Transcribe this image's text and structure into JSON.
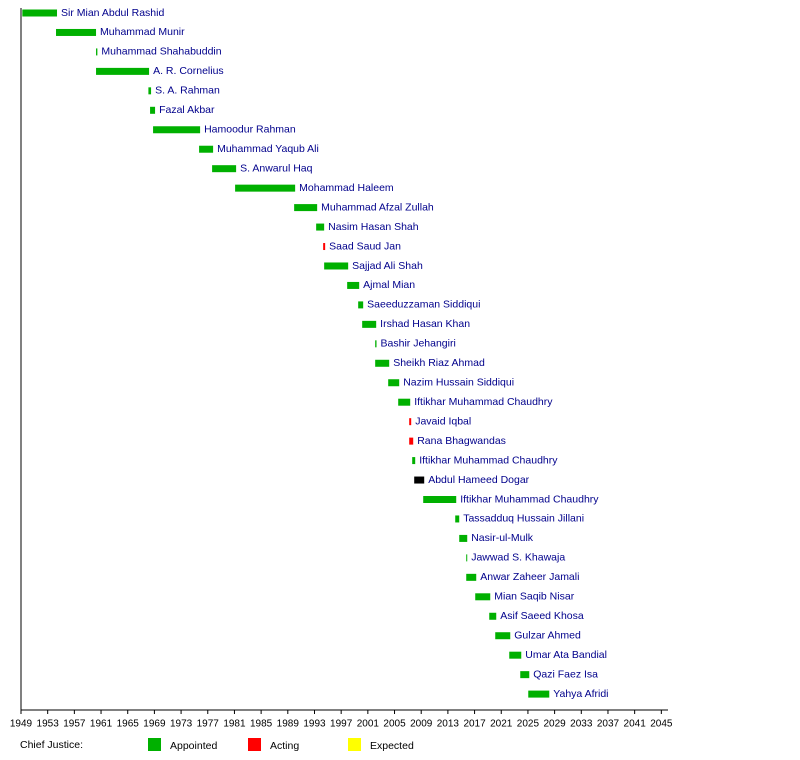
{
  "chart_data": {
    "type": "gantt",
    "xlim": [
      1949,
      2046
    ],
    "xticks": [
      1949,
      1953,
      1957,
      1961,
      1965,
      1969,
      1973,
      1977,
      1981,
      1985,
      1989,
      1993,
      1997,
      2001,
      2005,
      2009,
      2013,
      2017,
      2021,
      2025,
      2029,
      2033,
      2037,
      2041,
      2045
    ],
    "bars": [
      {
        "name": "Sir Mian Abdul Rashid",
        "start": 1949.2,
        "end": 1954.4,
        "color": "#00b000"
      },
      {
        "name": "Muhammad Munir",
        "start": 1954.25,
        "end": 1960.25,
        "color": "#00b000"
      },
      {
        "name": "Muhammad Shahabuddin",
        "start": 1960.25,
        "end": 1960.45,
        "color": "#00b000"
      },
      {
        "name": "A. R. Cornelius",
        "start": 1960.25,
        "end": 1968.2,
        "color": "#00b000"
      },
      {
        "name": "S. A. Rahman",
        "start": 1968.1,
        "end": 1968.5,
        "color": "#00b000"
      },
      {
        "name": "Fazal Akbar",
        "start": 1968.35,
        "end": 1969.1,
        "color": "#00b000"
      },
      {
        "name": "Hamoodur Rahman",
        "start": 1968.8,
        "end": 1975.85,
        "color": "#00b000"
      },
      {
        "name": "Muhammad Yaqub Ali",
        "start": 1975.7,
        "end": 1977.8,
        "color": "#00b000"
      },
      {
        "name": "S. Anwarul Haq",
        "start": 1977.65,
        "end": 1981.25,
        "color": "#00b000"
      },
      {
        "name": "Mohammad Haleem",
        "start": 1981.1,
        "end": 1990.1,
        "color": "#00b000"
      },
      {
        "name": "Muhammad Afzal Zullah",
        "start": 1989.95,
        "end": 1993.4,
        "color": "#00b000"
      },
      {
        "name": "Nasim Hasan Shah",
        "start": 1993.25,
        "end": 1994.45,
        "color": "#00b000"
      },
      {
        "name": "Saad Saud Jan",
        "start": 1994.3,
        "end": 1994.6,
        "color": "#ff0000"
      },
      {
        "name": "Sajjad Ali Shah",
        "start": 1994.45,
        "end": 1998.05,
        "color": "#00b000"
      },
      {
        "name": "Ajmal Mian",
        "start": 1997.9,
        "end": 1999.7,
        "color": "#00b000"
      },
      {
        "name": "Saeeduzzaman Siddiqui",
        "start": 1999.55,
        "end": 2000.3,
        "color": "#00b000"
      },
      {
        "name": "Irshad Hasan Khan",
        "start": 2000.15,
        "end": 2002.25,
        "color": "#00b000"
      },
      {
        "name": "Bashir Jehangiri",
        "start": 2002.1,
        "end": 2002.3,
        "color": "#00b000"
      },
      {
        "name": "Sheikh Riaz Ahmad",
        "start": 2002.1,
        "end": 2004.2,
        "color": "#00b000"
      },
      {
        "name": "Nazim Hussain Siddiqui",
        "start": 2004.05,
        "end": 2005.7,
        "color": "#00b000"
      },
      {
        "name": "Iftikhar Muhammad Chaudhry",
        "start": 2005.55,
        "end": 2007.35,
        "color": "#00b000"
      },
      {
        "name": "Javaid Iqbal",
        "start": 2007.2,
        "end": 2007.5,
        "color": "#ff0000"
      },
      {
        "name": "Rana Bhagwandas",
        "start": 2007.2,
        "end": 2007.8,
        "color": "#ff0000"
      },
      {
        "name": "Iftikhar Muhammad Chaudhry",
        "start": 2007.65,
        "end": 2008.1,
        "color": "#00b000"
      },
      {
        "name": "Abdul Hameed Dogar",
        "start": 2007.95,
        "end": 2009.45,
        "color": "#000000"
      },
      {
        "name": "Iftikhar Muhammad Chaudhry",
        "start": 2009.3,
        "end": 2014.25,
        "color": "#00b000"
      },
      {
        "name": "Tassadduq Hussain Jillani",
        "start": 2014.1,
        "end": 2014.7,
        "color": "#00b000"
      },
      {
        "name": "Nasir-ul-Mulk",
        "start": 2014.7,
        "end": 2015.9,
        "color": "#00b000"
      },
      {
        "name": "Jawwad S. Khawaja",
        "start": 2015.75,
        "end": 2015.9,
        "color": "#00b000"
      },
      {
        "name": "Anwar Zaheer Jamali",
        "start": 2015.75,
        "end": 2017.25,
        "color": "#00b000"
      },
      {
        "name": "Mian Saqib Nisar",
        "start": 2017.1,
        "end": 2019.35,
        "color": "#00b000"
      },
      {
        "name": "Asif Saeed Khosa",
        "start": 2019.2,
        "end": 2020.25,
        "color": "#00b000"
      },
      {
        "name": "Gulzar Ahmed",
        "start": 2020.1,
        "end": 2022.35,
        "color": "#00b000"
      },
      {
        "name": "Umar Ata Bandial",
        "start": 2022.2,
        "end": 2024.0,
        "color": "#00b000"
      },
      {
        "name": "Qazi Faez Isa",
        "start": 2023.85,
        "end": 2025.2,
        "color": "#00b000"
      },
      {
        "name": "Yahya Afridi",
        "start": 2025.05,
        "end": 2028.2,
        "color": "#00b000"
      }
    ],
    "legend": {
      "title": "Chief Justice:",
      "items": [
        {
          "name": "Appointed",
          "color": "#00b000"
        },
        {
          "name": "Acting",
          "color": "#ff0000"
        },
        {
          "name": "Expected",
          "color": "#ffff00"
        }
      ]
    }
  }
}
